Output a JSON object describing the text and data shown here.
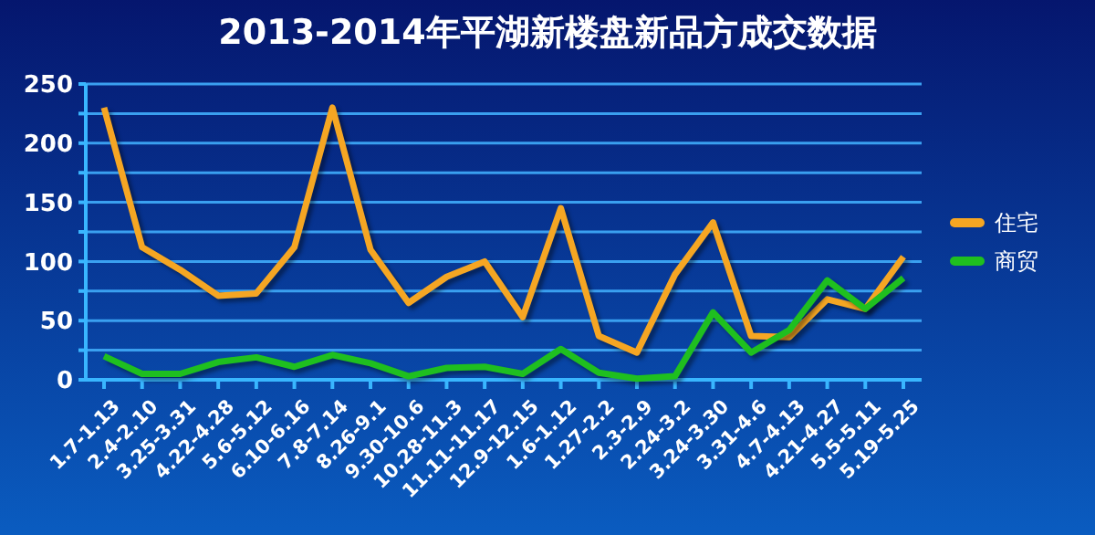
{
  "chart_data": {
    "type": "line",
    "title": "2013-2014年平湖新楼盘新品方成交数据",
    "categories": [
      "1.7-1.13",
      "2.4-2.10",
      "3.25-3.31",
      "4.22-4.28",
      "5.6-5.12",
      "6.10-6.16",
      "7.8-7.14",
      "8.26-9.1",
      "9.30-10.6",
      "10.28-11.3",
      "11.11-11.17",
      "12.9-12.15",
      "1.6-1.12",
      "1.27-2.2",
      "2.3-2.9",
      "2.24-3.2",
      "3.24-3.30",
      "3.31-4.6",
      "4.7-4.13",
      "4.21-4.27",
      "5.5-5.11",
      "5.19-5.25"
    ],
    "series": [
      {
        "name": "住宅",
        "color": "#f5a623",
        "values": [
          230,
          112,
          93,
          71,
          73,
          112,
          230,
          110,
          65,
          87,
          100,
          53,
          145,
          37,
          23,
          89,
          133,
          37,
          36,
          68,
          60,
          104
        ]
      },
      {
        "name": "商贸",
        "color": "#1fbf1f",
        "values": [
          20,
          5,
          5,
          15,
          19,
          11,
          21,
          14,
          3,
          10,
          11,
          5,
          26,
          6,
          1,
          3,
          57,
          23,
          42,
          84,
          60,
          86
        ]
      }
    ],
    "ylim": [
      0,
      250
    ],
    "yticks": [
      0,
      {
        "value": 25,
        "label": null
      },
      50,
      {
        "value": 75,
        "label": null
      },
      100,
      {
        "value": 125,
        "label": null
      },
      150,
      {
        "value": 175,
        "label": null
      },
      200,
      {
        "value": 225,
        "label": null
      },
      250
    ],
    "grid": true,
    "legend": "right",
    "line_style": "solid",
    "marker": "none"
  }
}
